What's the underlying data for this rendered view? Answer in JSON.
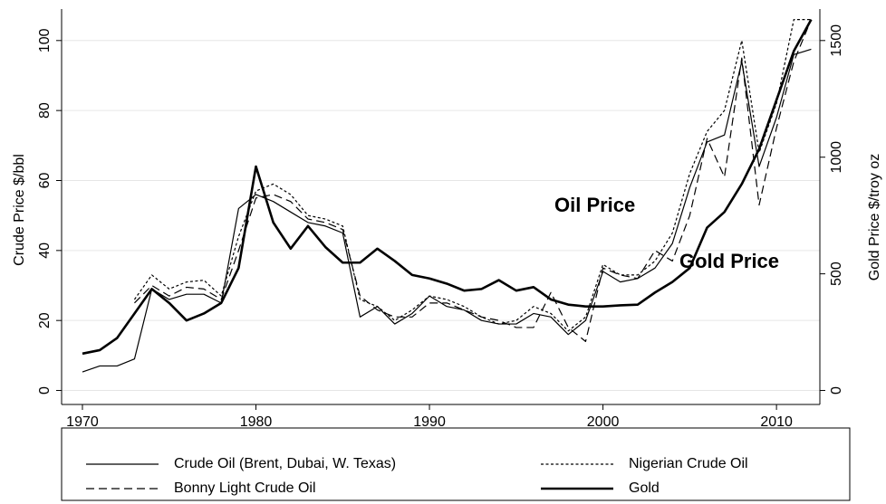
{
  "chart_data": {
    "type": "line",
    "x": [
      1970,
      1971,
      1972,
      1973,
      1974,
      1975,
      1976,
      1977,
      1978,
      1979,
      1980,
      1981,
      1982,
      1983,
      1984,
      1985,
      1986,
      1987,
      1988,
      1989,
      1990,
      1991,
      1992,
      1993,
      1994,
      1995,
      1996,
      1997,
      1998,
      1999,
      2000,
      2001,
      2002,
      2003,
      2004,
      2005,
      2006,
      2007,
      2008,
      2009,
      2010,
      2011,
      2012
    ],
    "xlim": [
      1968.8,
      2012.5
    ],
    "xticks": [
      1970,
      1980,
      1990,
      2000,
      2010
    ],
    "ylabel": "Crude Price $/bbl",
    "y2label": "Gold Price $/troy oz",
    "ylim": [
      -4,
      109
    ],
    "yticks": [
      0,
      20,
      40,
      60,
      80,
      100
    ],
    "y2lim": [
      -60,
      1635
    ],
    "y2ticks": [
      0,
      500,
      1000,
      1500
    ],
    "grid": true,
    "legend": "bottom",
    "series": [
      {
        "name": "Crude Oil (Brent, Dubai, W. Texas)",
        "color": "#000000",
        "style": "solid",
        "width": 1.2,
        "values": [
          5.3,
          7,
          7,
          9,
          29,
          26,
          27.5,
          27.5,
          25,
          52,
          56,
          54,
          51,
          48,
          47,
          45,
          21,
          24,
          19,
          22,
          27,
          24,
          23,
          20,
          19,
          19,
          22,
          21,
          16,
          20,
          34,
          31,
          32,
          35,
          42,
          58,
          71,
          73,
          94,
          64,
          78,
          96,
          97.5
        ]
      },
      {
        "name": "Nigerian Crude Oil",
        "color": "#000000",
        "style": "dotted",
        "width": 1.2,
        "values": [
          null,
          null,
          null,
          26,
          33,
          29,
          31,
          31.5,
          27,
          44,
          57,
          59,
          56,
          50,
          49,
          47,
          26,
          24,
          20,
          23,
          27,
          26,
          24,
          21,
          19,
          20,
          24,
          22,
          17,
          21,
          36,
          33,
          33,
          37,
          45,
          62,
          74,
          80,
          100,
          68,
          82,
          106,
          106
        ]
      },
      {
        "name": "Bonny Light Crude Oil",
        "color": "#000000",
        "style": "dashed",
        "width": 1.2,
        "values": [
          null,
          null,
          null,
          25,
          30,
          27,
          29.5,
          29,
          26,
          40,
          55,
          56,
          54,
          49,
          48,
          46,
          27,
          23,
          21,
          21,
          25,
          25,
          23,
          21,
          20,
          18,
          18,
          28,
          18,
          14,
          35,
          33,
          32,
          40,
          37,
          50,
          72,
          61,
          95,
          53,
          75,
          94,
          106
        ]
      },
      {
        "name": "Gold",
        "color": "#000000",
        "style": "solid",
        "width": 2.6,
        "axis": "y2",
        "values": [
          158,
          173,
          225,
          330,
          435,
          375,
          300,
          330,
          375,
          525,
          960,
          720,
          608,
          705,
          615,
          548,
          548,
          608,
          555,
          495,
          480,
          458,
          428,
          435,
          473,
          428,
          443,
          390,
          368,
          360,
          360,
          365,
          368,
          420,
          465,
          525,
          698,
          765,
          885,
          1035,
          1245,
          1455,
          1590
        ]
      }
    ],
    "annotations": [
      "Oil Price",
      "Gold Price"
    ]
  }
}
